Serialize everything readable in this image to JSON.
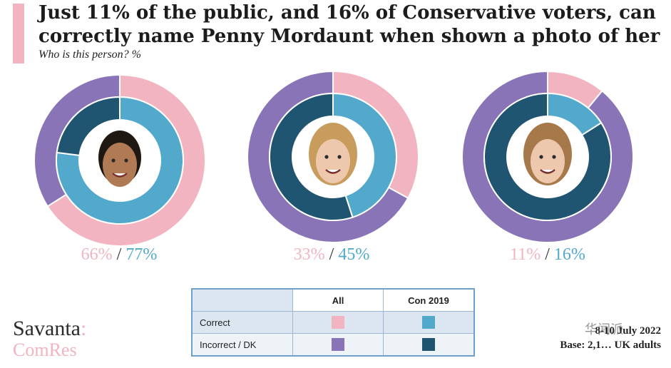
{
  "title": "Just 11% of the public, and 16% of Conservative voters, can correctly name Penny Mordaunt when shown a photo of her",
  "subtitle": "Who is this person? %",
  "colors": {
    "all_correct": "#f2b4c0",
    "all_incorrect": "#8a74b8",
    "con_correct": "#52a9cc",
    "con_incorrect": "#1f5570",
    "accent": "#f2b4c0"
  },
  "chart_data": {
    "type": "pie",
    "subtype": "nested-donut",
    "title": "Just 11% of the public, and 16% of Conservative voters, can correctly name Penny Mordaunt when shown a photo of her",
    "subtitle": "Who is this person? %",
    "legend": {
      "rows": [
        "Correct",
        "Incorrect / DK"
      ],
      "columns": [
        "All",
        "Con 2019"
      ]
    },
    "charts": [
      {
        "outer_series": "All",
        "outer_correct": 66,
        "inner_series": "Con 2019",
        "inner_correct": 77,
        "label_all": "66%",
        "label_con": "77%",
        "photo": "man-portrait-icon"
      },
      {
        "outer_series": "All",
        "outer_correct": 33,
        "inner_series": "Con 2019",
        "inner_correct": 45,
        "label_all": "33%",
        "label_con": "45%",
        "photo": "woman-portrait-icon"
      },
      {
        "outer_series": "All",
        "outer_correct": 11,
        "inner_series": "Con 2019",
        "inner_correct": 16,
        "label_all": "11%",
        "label_con": "16%",
        "photo": "woman-portrait-icon"
      }
    ]
  },
  "labels": {
    "sep": "/"
  },
  "legend_table": {
    "header_all": "All",
    "header_con": "Con 2019",
    "row_correct": "Correct",
    "row_incorrect": "Incorrect / DK"
  },
  "brand": {
    "line1": "Savanta",
    "colon": ":",
    "line2": "ComRes"
  },
  "footnote": {
    "dates": "8-10 July 2022",
    "base": "Base: 2,1… UK adults"
  },
  "watermark": "华闻派"
}
